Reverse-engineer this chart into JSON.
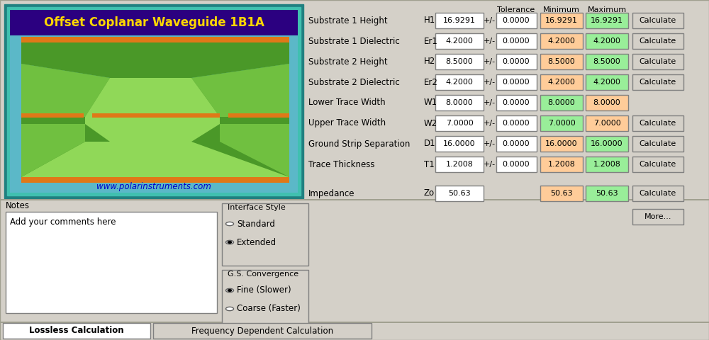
{
  "title": "Offset Coplanar Waveguide 1B1A",
  "title_color": "#FFD700",
  "title_bg": "#2B0080",
  "diagram_bg": "#5BB8C8",
  "diagram_border_outer": "#208080",
  "diagram_border_inner": "#40C0B0",
  "website": "www.polarinstruments.com",
  "rows": [
    {
      "label": "Substrate 1 Height",
      "sym": "H1",
      "value": "16.9291",
      "tol": "0.0000",
      "min": "16.9291",
      "max": "16.9291",
      "has_calc": true,
      "min_color": "#FFCC99",
      "max_color": "#99EE99"
    },
    {
      "label": "Substrate 1 Dielectric",
      "sym": "Er1",
      "value": "4.2000",
      "tol": "0.0000",
      "min": "4.2000",
      "max": "4.2000",
      "has_calc": true,
      "min_color": "#FFCC99",
      "max_color": "#99EE99"
    },
    {
      "label": "Substrate 2 Height",
      "sym": "H2",
      "value": "8.5000",
      "tol": "0.0000",
      "min": "8.5000",
      "max": "8.5000",
      "has_calc": true,
      "min_color": "#FFCC99",
      "max_color": "#99EE99"
    },
    {
      "label": "Substrate 2 Dielectric",
      "sym": "Er2",
      "value": "4.2000",
      "tol": "0.0000",
      "min": "4.2000",
      "max": "4.2000",
      "has_calc": true,
      "min_color": "#FFCC99",
      "max_color": "#99EE99"
    },
    {
      "label": "Lower Trace Width",
      "sym": "W1",
      "value": "8.0000",
      "tol": "0.0000",
      "min": "8.0000",
      "max": "8.0000",
      "has_calc": false,
      "min_color": "#99EE99",
      "max_color": "#FFCC99"
    },
    {
      "label": "Upper Trace Width",
      "sym": "W2",
      "value": "7.0000",
      "tol": "0.0000",
      "min": "7.0000",
      "max": "7.0000",
      "has_calc": true,
      "min_color": "#99EE99",
      "max_color": "#FFCC99"
    },
    {
      "label": "Ground Strip Separation",
      "sym": "D1",
      "value": "16.0000",
      "tol": "0.0000",
      "min": "16.0000",
      "max": "16.0000",
      "has_calc": true,
      "min_color": "#FFCC99",
      "max_color": "#99EE99"
    },
    {
      "label": "Trace Thickness",
      "sym": "T1",
      "value": "1.2008",
      "tol": "0.0000",
      "min": "1.2008",
      "max": "1.2008",
      "has_calc": true,
      "min_color": "#FFCC99",
      "max_color": "#99EE99"
    }
  ],
  "impedance_label": "Impedance",
  "impedance_sym": "Zo",
  "impedance_value": "50.63",
  "impedance_min": "50.63",
  "impedance_max": "50.63",
  "impedance_min_color": "#FFCC99",
  "impedance_max_color": "#99EE99",
  "notes_label": "Notes",
  "notes_text": "Add your comments here",
  "interface_label": "Interface Style",
  "interface_opts": [
    "Standard",
    "Extended"
  ],
  "interface_selected": 1,
  "convergence_label": "G.S. Convergence",
  "convergence_opts": [
    "Fine (Slower)",
    "Coarse (Faster)"
  ],
  "convergence_selected": 0,
  "tab1": "Lossless Calculation",
  "tab2": "Frequency Dependent Calculation",
  "bg_color": "#D4D0C8",
  "diag_green_light": "#90D858",
  "diag_green_dark": "#4A9828",
  "diag_green_mid": "#70C040",
  "diag_orange": "#E07818"
}
